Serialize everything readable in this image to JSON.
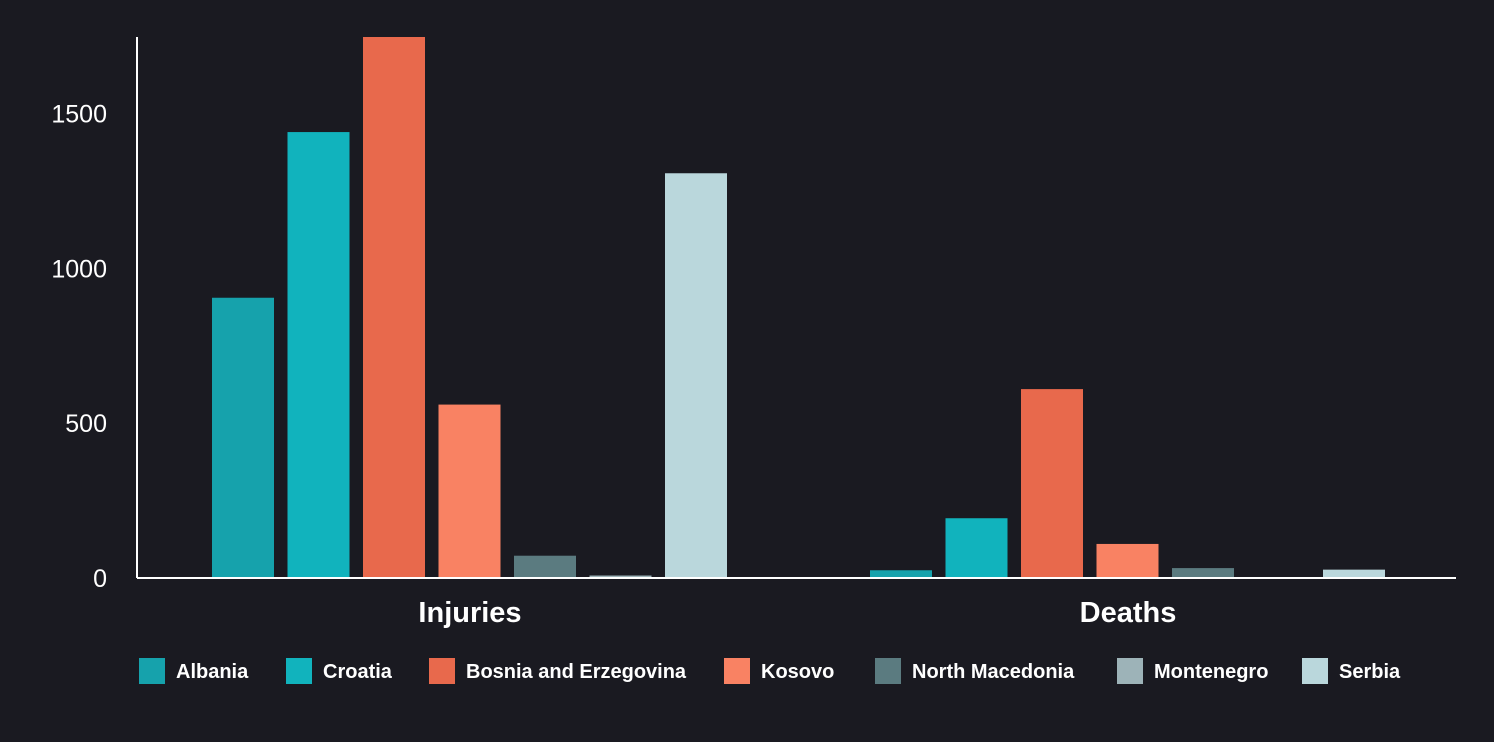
{
  "chart_data": {
    "type": "bar",
    "categories": [
      "Injuries",
      "Deaths"
    ],
    "series": [
      {
        "name": "Albania",
        "color": "#16a2ac",
        "values": [
          905,
          25
        ]
      },
      {
        "name": "Croatia",
        "color": "#11b3bd",
        "values": [
          1440,
          193
        ]
      },
      {
        "name": "Bosnia and Erzegovina",
        "color": "#e8694c",
        "values": [
          1747,
          610
        ]
      },
      {
        "name": "Kosovo",
        "color": "#f98263",
        "values": [
          560,
          110
        ]
      },
      {
        "name": "North Macedonia",
        "color": "#5b7b80",
        "values": [
          72,
          32
        ]
      },
      {
        "name": "Montenegro",
        "color": "#9db3b8",
        "values": [
          8,
          0
        ]
      },
      {
        "name": "Serbia",
        "color": "#bad7dc",
        "values": [
          1307,
          27
        ]
      }
    ],
    "yticks": [
      "0",
      "500",
      "1000",
      "1500"
    ],
    "ylim": [
      0,
      1747
    ],
    "grid": false,
    "legend_position": "bottom",
    "title": "",
    "xlabel": "",
    "ylabel": ""
  }
}
